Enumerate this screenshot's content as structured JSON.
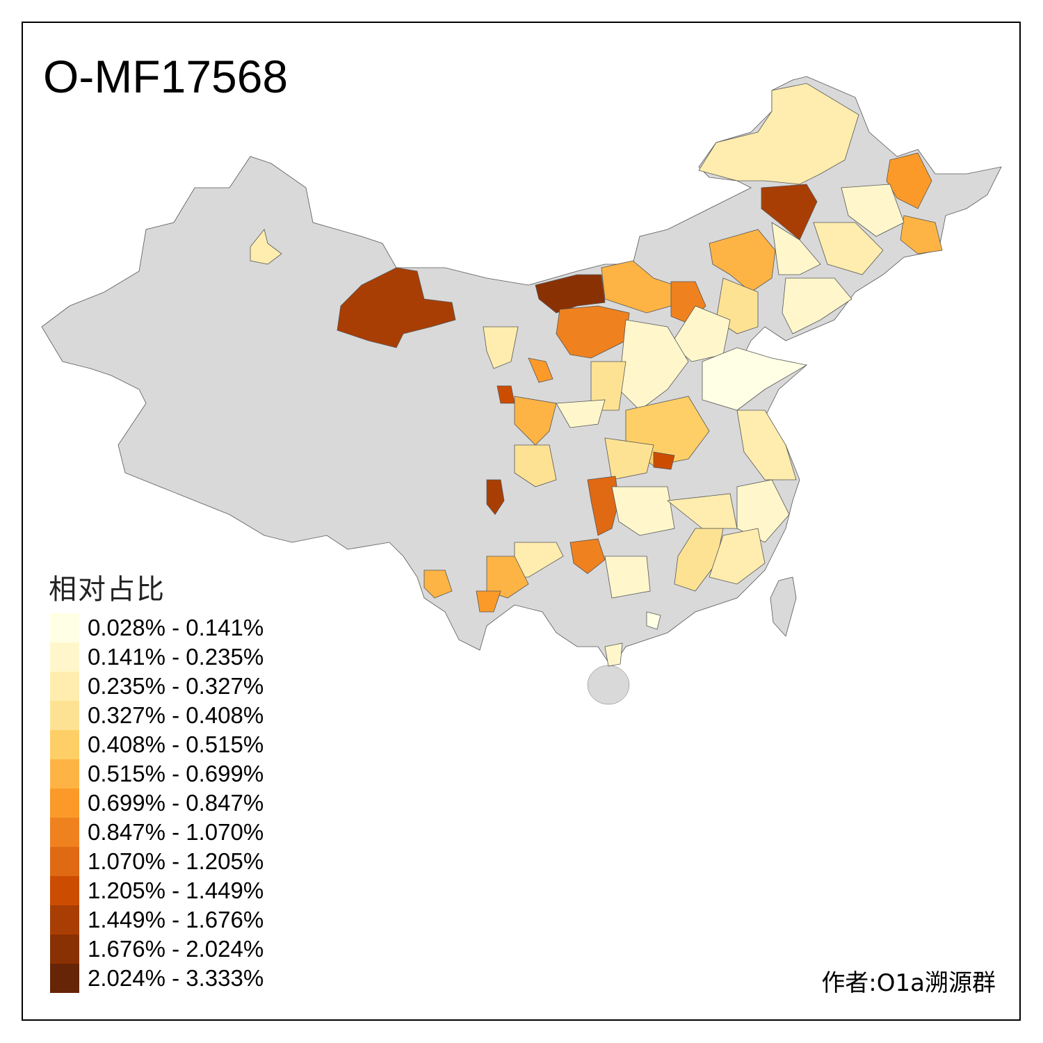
{
  "title": "O-MF17568",
  "legend": {
    "title": "相对占比",
    "bins": [
      {
        "label": "0.028% - 0.141%",
        "color": "#FFFFE5"
      },
      {
        "label": "0.141% - 0.235%",
        "color": "#FFF7CB"
      },
      {
        "label": "0.235% - 0.327%",
        "color": "#FEEDAE"
      },
      {
        "label": "0.327% - 0.408%",
        "color": "#FEE294"
      },
      {
        "label": "0.408% - 0.515%",
        "color": "#FECF66"
      },
      {
        "label": "0.515% - 0.699%",
        "color": "#FEB444"
      },
      {
        "label": "0.699% - 0.847%",
        "color": "#FB9A29"
      },
      {
        "label": "0.847% - 1.070%",
        "color": "#F0811F"
      },
      {
        "label": "1.070% - 1.205%",
        "color": "#E06914"
      },
      {
        "label": "1.205% - 1.449%",
        "color": "#CC4C02"
      },
      {
        "label": "1.449% - 1.676%",
        "color": "#A93E04"
      },
      {
        "label": "1.676% - 2.024%",
        "color": "#8A3104"
      },
      {
        "label": "2.024% - 3.333%",
        "color": "#662506"
      }
    ]
  },
  "no_data_color": "#D9D9D9",
  "author": "作者:O1a溯源群"
}
